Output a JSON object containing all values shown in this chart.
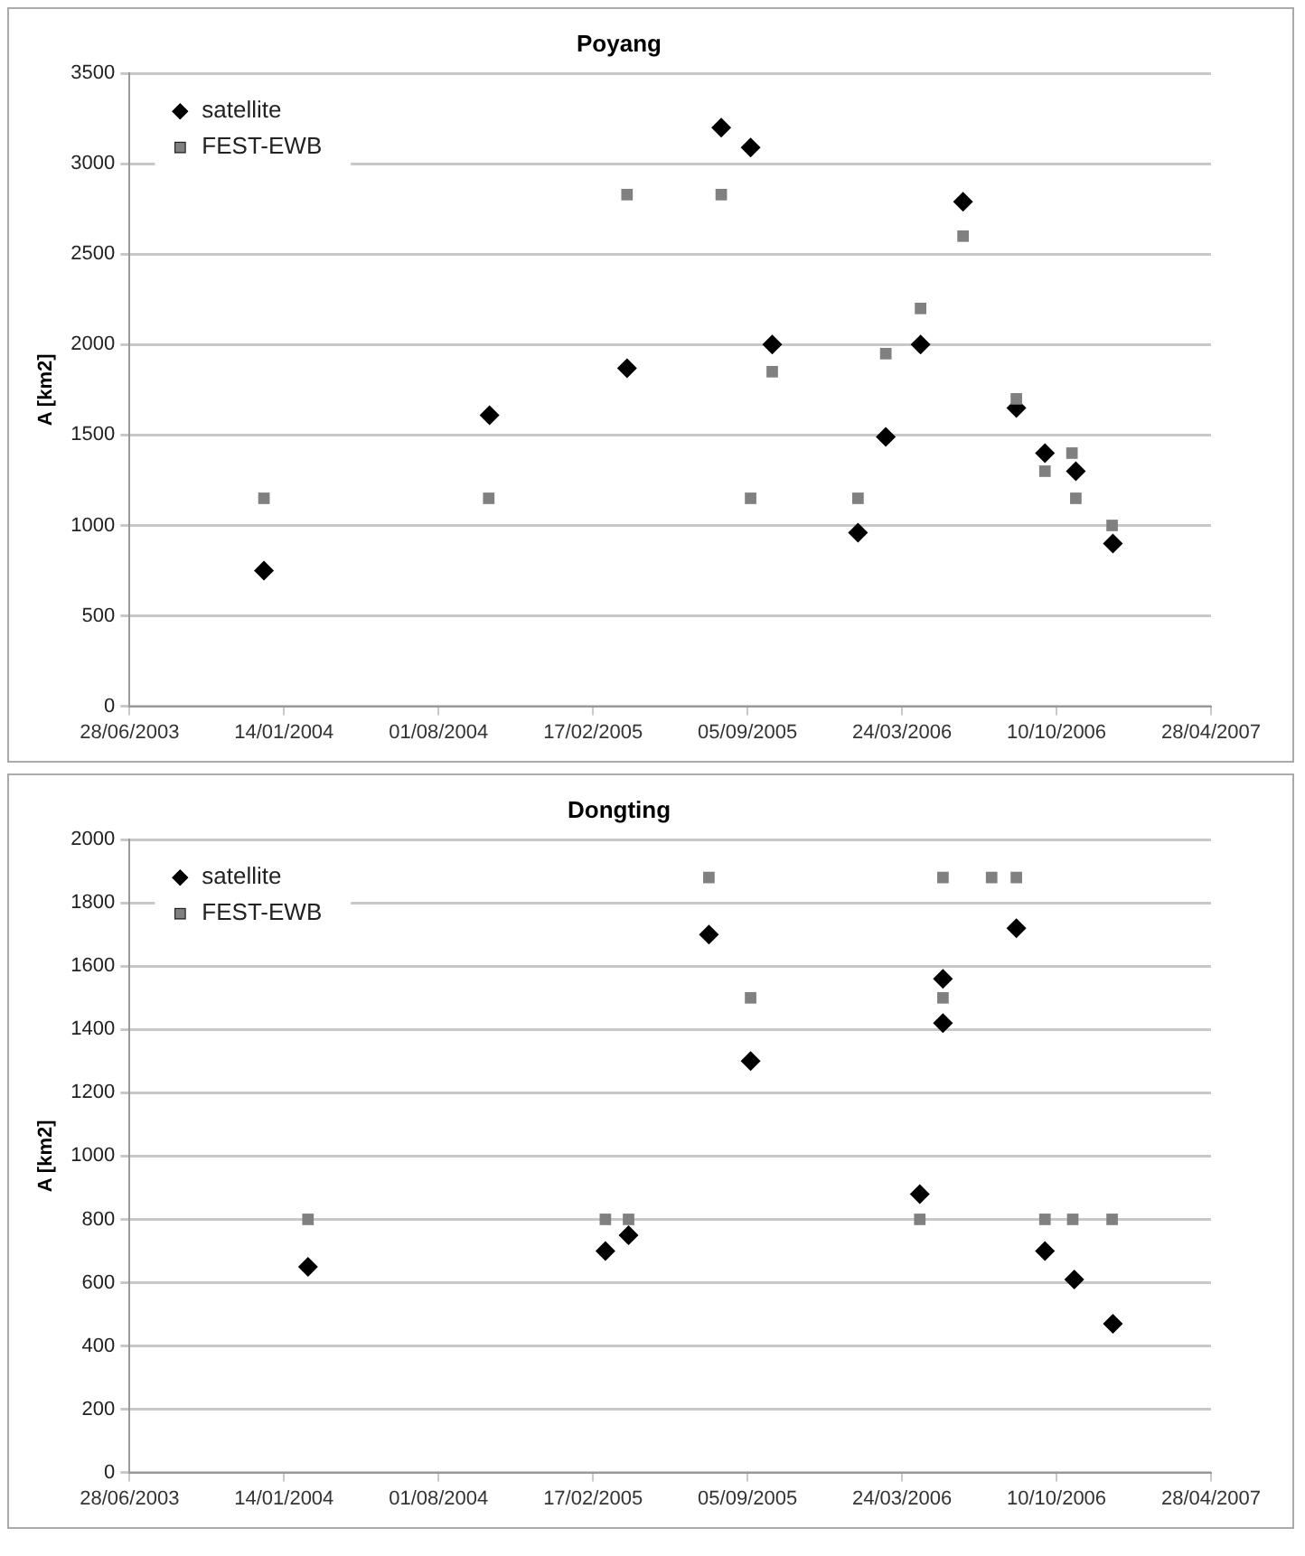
{
  "chart_data": [
    {
      "type": "scatter",
      "title": "Poyang",
      "ylabel": "A [km2]",
      "xlim": [
        "2003-06-28",
        "2007-04-28"
      ],
      "xticks": [
        {
          "value": "2003-06-28",
          "label": "28/06/2003"
        },
        {
          "value": "2004-01-14",
          "label": "14/01/2004"
        },
        {
          "value": "2004-08-01",
          "label": "01/08/2004"
        },
        {
          "value": "2005-02-17",
          "label": "17/02/2005"
        },
        {
          "value": "2005-09-05",
          "label": "05/09/2005"
        },
        {
          "value": "2006-03-24",
          "label": "24/03/2006"
        },
        {
          "value": "2006-10-10",
          "label": "10/10/2006"
        },
        {
          "value": "2007-04-28",
          "label": "28/04/2007"
        }
      ],
      "ylim": [
        0,
        3500
      ],
      "yticks": [
        0,
        500,
        1000,
        1500,
        2000,
        2500,
        3000,
        3500
      ],
      "grid": "y",
      "legend": "top left",
      "series": [
        {
          "name": "satellite",
          "color": "#000000",
          "marker": "diamond",
          "x": [
            "2003-12-19",
            "2004-10-06",
            "2005-04-02",
            "2005-08-02",
            "2005-09-09",
            "2005-10-07",
            "2006-01-26",
            "2006-03-03",
            "2006-04-17",
            "2006-06-11",
            "2006-08-19",
            "2006-09-25",
            "2006-11-04",
            "2006-12-22"
          ],
          "values": [
            750,
            1610,
            1870,
            3200,
            3090,
            2000,
            960,
            1490,
            2000,
            2790,
            1650,
            1400,
            1300,
            900
          ]
        },
        {
          "name": "FEST-EWB",
          "color": "#808080",
          "marker": "square",
          "x": [
            "2003-12-19",
            "2004-10-05",
            "2005-04-02",
            "2005-08-02",
            "2005-09-09",
            "2005-10-07",
            "2006-01-26",
            "2006-03-03",
            "2006-04-17",
            "2006-06-11",
            "2006-08-19",
            "2006-09-25",
            "2006-10-30",
            "2006-11-04",
            "2006-12-21"
          ],
          "values": [
            1150,
            1150,
            2830,
            2830,
            1150,
            1850,
            1150,
            1950,
            2200,
            2600,
            1700,
            1300,
            1400,
            1150,
            1000
          ]
        }
      ]
    },
    {
      "type": "scatter",
      "title": "Dongting",
      "ylabel": "A [km2]",
      "xlim": [
        "2003-06-28",
        "2007-04-28"
      ],
      "xticks": [
        {
          "value": "2003-06-28",
          "label": "28/06/2003"
        },
        {
          "value": "2004-01-14",
          "label": "14/01/2004"
        },
        {
          "value": "2004-08-01",
          "label": "01/08/2004"
        },
        {
          "value": "2005-02-17",
          "label": "17/02/2005"
        },
        {
          "value": "2005-09-05",
          "label": "05/09/2005"
        },
        {
          "value": "2006-03-24",
          "label": "24/03/2006"
        },
        {
          "value": "2006-10-10",
          "label": "10/10/2006"
        },
        {
          "value": "2007-04-28",
          "label": "28/04/2007"
        }
      ],
      "ylim": [
        0,
        2000
      ],
      "yticks": [
        0,
        200,
        400,
        600,
        800,
        1000,
        1200,
        1400,
        1600,
        1800,
        2000
      ],
      "grid": "y",
      "legend": "top left",
      "series": [
        {
          "name": "satellite",
          "color": "#000000",
          "marker": "diamond",
          "x": [
            "2004-02-14",
            "2005-03-05",
            "2005-04-04",
            "2005-07-17",
            "2005-09-09",
            "2006-04-16",
            "2006-05-16",
            "2006-05-16",
            "2006-08-19",
            "2006-09-25",
            "2006-11-02",
            "2006-12-22"
          ],
          "values": [
            650,
            700,
            750,
            1700,
            1300,
            880,
            1560,
            1420,
            1720,
            700,
            610,
            470
          ]
        },
        {
          "name": "FEST-EWB",
          "color": "#808080",
          "marker": "square",
          "x": [
            "2004-02-14",
            "2005-03-05",
            "2005-04-04",
            "2005-07-17",
            "2005-09-09",
            "2006-04-16",
            "2006-05-16",
            "2006-05-16",
            "2006-07-18",
            "2006-08-19",
            "2006-09-25",
            "2006-10-31",
            "2006-12-21"
          ],
          "values": [
            800,
            800,
            800,
            1880,
            1500,
            800,
            1880,
            1500,
            1880,
            1880,
            800,
            800,
            800
          ]
        }
      ]
    }
  ]
}
